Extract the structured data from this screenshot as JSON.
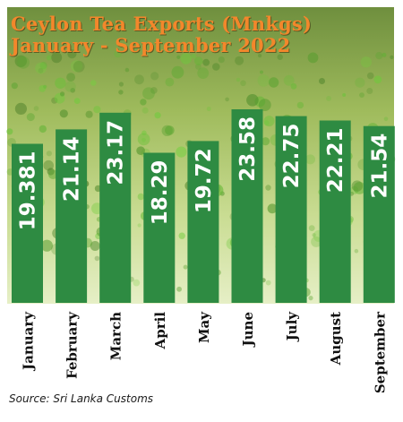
{
  "chart_data": {
    "type": "bar",
    "title": "Ceylon Tea Exports  (Mnkgs)",
    "subtitle": "January - September 2022",
    "categories": [
      "January",
      "February",
      "March",
      "April",
      "May",
      "June",
      "July",
      "August",
      "September"
    ],
    "values": [
      19.381,
      21.14,
      23.17,
      18.29,
      19.72,
      23.58,
      22.75,
      22.21,
      21.54
    ],
    "value_labels": [
      "19.381",
      "21.14",
      "23.17",
      "18.29",
      "19.72",
      "23.58",
      "22.75",
      "22.21",
      "21.54"
    ],
    "xlabel": "",
    "ylabel": "",
    "ylim": [
      0,
      25
    ],
    "grid": false,
    "legend": "none"
  },
  "source": "Source: Sri Lanka Customs",
  "colors": {
    "bar": "#2e8b42",
    "title": "#f3872b",
    "bar_label": "#ffffff",
    "background_top": "#7f9b4a",
    "background_bottom": "#e2edc0"
  }
}
